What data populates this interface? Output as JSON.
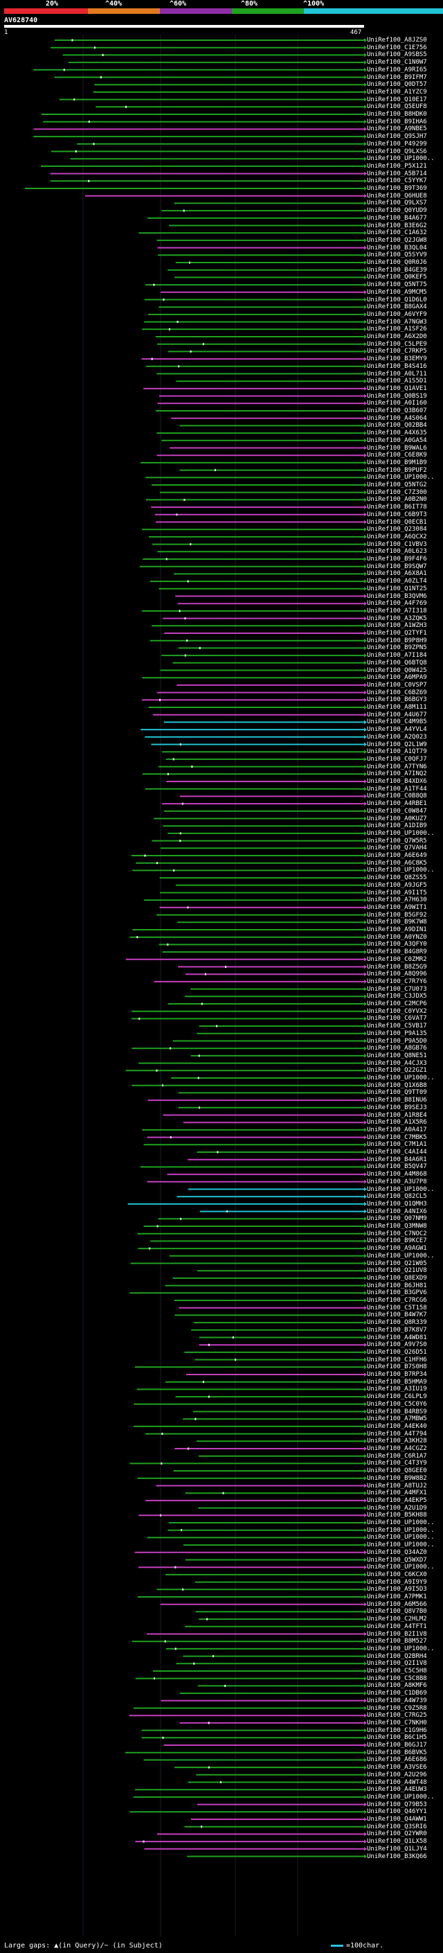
{
  "legend": {
    "ticks": [
      "20%",
      "^40%",
      "^60%",
      "^80%",
      "^100%"
    ],
    "colors": [
      "#e5262e",
      "#e07a1f",
      "#8e2ea6",
      "#1fa21f",
      "#22c4d6"
    ]
  },
  "query": {
    "title": "AV628740",
    "start": "1",
    "end": "467"
  },
  "hits": [
    "UniRef100_A8JZS0",
    "UniRef100_C1E756",
    "UniRef100_A9SBS5",
    "UniRef100_C1N0W7",
    "UniRef100_A9RI65",
    "UniRef100_B9IFM7",
    "UniRef100_Q0DT57",
    "UniRef100_A1YZC9",
    "UniRef100_Q10E17",
    "UniRef100_Q5EUF8",
    "UniRef100_B8HDK0",
    "UniRef100_B9IHA6",
    "UniRef100_A9NBE5",
    "UniRef100_Q9SJH7",
    "UniRef100_P49299",
    "UniRef100_Q9LXS6",
    "UniRef100_UP1000..",
    "UniRef100_P5X121",
    "UniRef100_A5B714",
    "UniRef100_C5YYK7",
    "UniRef100_B9T369",
    "UniRef100_Q6HUE8",
    "UniRef100_Q9LXS7",
    "UniRef100_Q0YUD9",
    "UniRef100_B4A677",
    "UniRef100_B3E6G2",
    "UniRef100_C1A632",
    "UniRef100_Q2JGW8",
    "UniRef100_B3QL04",
    "UniRef100_Q5SYV9",
    "UniRef100_Q0R0J6",
    "UniRef100_B4GE39",
    "UniRef100_Q0KEF5",
    "UniRef100_Q5NT75",
    "UniRef100_A9MCM5",
    "UniRef100_Q1D6L0",
    "UniRef100_B8GAX4",
    "UniRef100_A6VYF9",
    "UniRef100_A7NGW3",
    "UniRef100_A1SF26",
    "UniRef100_A6X2D0",
    "UniRef100_C5LPE9",
    "UniRef100_C7RKP5",
    "UniRef100_B3EMY9",
    "UniRef100_B4S416",
    "UniRef100_A0L711",
    "UniRef100_A1S5D1",
    "UniRef100_Q1AVE1",
    "UniRef100_Q0BS19",
    "UniRef100_A0I160",
    "UniRef100_Q3B607",
    "UniRef100_A4S064",
    "UniRef100_Q02BB4",
    "UniRef100_A4X635",
    "UniRef100_A0GA54",
    "UniRef100_B9WAL6",
    "UniRef100_C6E8K9",
    "UniRef100_B9M1B9",
    "UniRef100_B9PUF2",
    "UniRef100_UP1000..",
    "UniRef100_Q5NTG2",
    "UniRef100_C7Z300",
    "UniRef100_A0B2N0",
    "UniRef100_B6IT78",
    "UniRef100_C6B9T3",
    "UniRef100_Q0ECB1",
    "UniRef100_Q23084",
    "UniRef100_A6QCX2",
    "UniRef100_C1VBV3",
    "UniRef100_A0L623",
    "UniRef100_B9F4F6",
    "UniRef100_B9SQW7",
    "UniRef100_A6X8A1",
    "UniRef100_A0ZLT4",
    "UniRef100_Q1NT25",
    "UniRef100_B3QVM6",
    "UniRef100_A4F769",
    "UniRef100_A7I318",
    "UniRef100_A3ZQK5",
    "UniRef100_A1WZH3",
    "UniRef100_Q2TYF1",
    "UniRef100_B9P8H9",
    "UniRef100_B9ZPN5",
    "UniRef100_A7I184",
    "UniRef100_Q6BTQ8",
    "UniRef100_Q0W425",
    "UniRef100_A6MPA9",
    "UniRef100_C0VSP7",
    "UniRef100_C6BZ69",
    "UniRef100_B6BGY3",
    "UniRef100_A8M111",
    "UniRef100_A4U677",
    "UniRef100_C4M9B5",
    "UniRef100_A4YVL4",
    "UniRef100_A2Q023",
    "UniRef100_Q2L1W9",
    "UniRef100_A1QT79",
    "UniRef100_C0QFJ7",
    "UniRef100_A7TYN6",
    "UniRef100_A7INQ2",
    "UniRef100_B4XDX6",
    "UniRef100_A1TF44",
    "UniRef100_C0B8Q8",
    "UniRef100_A4RBE1",
    "UniRef100_C0W847",
    "UniRef100_A0KUZ7",
    "UniRef100_A1DIB9",
    "UniRef100_UP1000..",
    "UniRef100_Q7W5R5",
    "UniRef100_Q7VAH4",
    "UniRef100_A6E649",
    "UniRef100_A6C8K5",
    "UniRef100_UP1000..",
    "UniRef100_Q8ZS55",
    "UniRef100_A9JGF5",
    "UniRef100_A9I1T5",
    "UniRef100_A7H630",
    "UniRef100_A9WIT1",
    "UniRef100_B5GF92",
    "UniRef100_B9K7W8",
    "UniRef100_A9DIN1",
    "UniRef100_A0YNZ0",
    "UniRef100_A3QFY0",
    "UniRef100_B4G8R9",
    "UniRef100_C0ZMR2",
    "UniRef100_B8Z5G9",
    "UniRef100_A8Q996",
    "UniRef100_C7R7Y6",
    "UniRef100_C7U073",
    "UniRef100_C3JDX5",
    "UniRef100_C2MCP6",
    "UniRef100_C0YVX2",
    "UniRef100_C6VAT7",
    "UniRef100_C5VB17",
    "UniRef100_P9A135",
    "UniRef100_P9A5D0",
    "UniRef100_A8GB76",
    "UniRef100_Q8NE51",
    "UniRef100_A4CJX3",
    "UniRef100_Q22GZ1",
    "UniRef100_UP1000..",
    "UniRef100_Q1X6B8",
    "UniRef100_Q9TT09",
    "UniRef100_B8INU6",
    "UniRef100_B9SEJ3",
    "UniRef100_A1R8E4",
    "UniRef100_A1X5R6",
    "UniRef100_A0A417",
    "UniRef100_C7MBK5",
    "UniRef100_C7M1A1",
    "UniRef100_C4AI44",
    "UniRef100_B4A6R1",
    "UniRef100_B5QV47",
    "UniRef100_A4M868",
    "UniRef100_A3U7P8",
    "UniRef100_UP1000..",
    "UniRef100_Q82CL5",
    "UniRef100_Q1QMH3",
    "UniRef100_A4NIX6",
    "UniRef100_Q07NM9",
    "UniRef100_Q3MNW8",
    "UniRef100_C7NOC2",
    "UniRef100_B9KCE7",
    "UniRef100_A9AGW1",
    "UniRef100_UP1000..",
    "UniRef100_Q21W05",
    "UniRef100_Q21UV8",
    "UniRef100_Q8EXD9",
    "UniRef100_B6JH81",
    "UniRef100_B3GPV6",
    "UniRef100_C7RCG6",
    "UniRef100_C5T158",
    "UniRef100_B4W7K7",
    "UniRef100_Q8R339",
    "UniRef100_B7K8V7",
    "UniRef100_A4WD81",
    "UniRef100_A9V7S0",
    "UniRef100_Q26D51",
    "UniRef100_C1HFH6",
    "UniRef100_B7S0H8",
    "UniRef100_B7RP34",
    "UniRef100_B5HMA9",
    "UniRef100_A3IU19",
    "UniRef100_C6LPL9",
    "UniRef100_C5C0Y6",
    "UniRef100_B4RBS9",
    "UniRef100_A7MBW5",
    "UniRef100_A4EK40",
    "UniRef100_A4T794",
    "UniRef100_A3KH28",
    "UniRef100_A4CGZ2",
    "UniRef100_C6R1A7",
    "UniRef100_C4T3Y9",
    "UniRef100_Q8GEE0",
    "UniRef100_B9W8B2",
    "UniRef100_A8TUJ2",
    "UniRef100_A4MFX1",
    "UniRef100_A4EKP5",
    "UniRef100_A2U1D9",
    "UniRef100_B5KH88",
    "UniRef100_UP1000..",
    "UniRef100_UP1000..",
    "UniRef100_UP1000..",
    "UniRef100_UP1000..",
    "UniRef100_Q34AZ0",
    "UniRef100_Q5WXD7",
    "UniRef100_UP1000..",
    "UniRef100_C6KCX0",
    "UniRef100_A9I9Y9",
    "UniRef100_A9I5D3",
    "UniRef100_A7PMK1",
    "UniRef100_A6M566",
    "UniRef100_Q8V7B0",
    "UniRef100_C2HLM2",
    "UniRef100_A4TFT1",
    "UniRef100_B2I1V8",
    "UniRef100_B8M527",
    "UniRef100_UP1000..",
    "UniRef100_Q2BRH4",
    "UniRef100_Q2I1V8",
    "UniRef100_C5C5H8",
    "UniRef100_C5C8B8",
    "UniRef100_A8KMF6",
    "UniRef100_C1DB69",
    "UniRef100_A4W739",
    "UniRef100_C9Z5R8",
    "UniRef100_C7RG25",
    "UniRef100_C7NKH0",
    "UniRef100_C1G9H6",
    "UniRef100_B6C1H5",
    "UniRef100_B6GJ17",
    "UniRef100_B6BVK5",
    "UniRef100_A6E686",
    "UniRef100_A3VSE6",
    "UniRef100_A2U296",
    "UniRef100_A4WT48",
    "UniRef100_A4EUW3",
    "UniRef100_UP1000..",
    "UniRef100_Q79B53",
    "UniRef100_Q46YY1",
    "UniRef100_Q4AWW1",
    "UniRef100_Q3SRI6",
    "UniRef100_Q2YWR0",
    "UniRef100_Q1LX58",
    "UniRef100_Q1LJY4",
    "UniRef100_B3KQ66"
  ],
  "footer": {
    "gaps_text": "Large gaps: ▲(in Query)/~ (in Subject)",
    "scale_text": "=100char."
  }
}
